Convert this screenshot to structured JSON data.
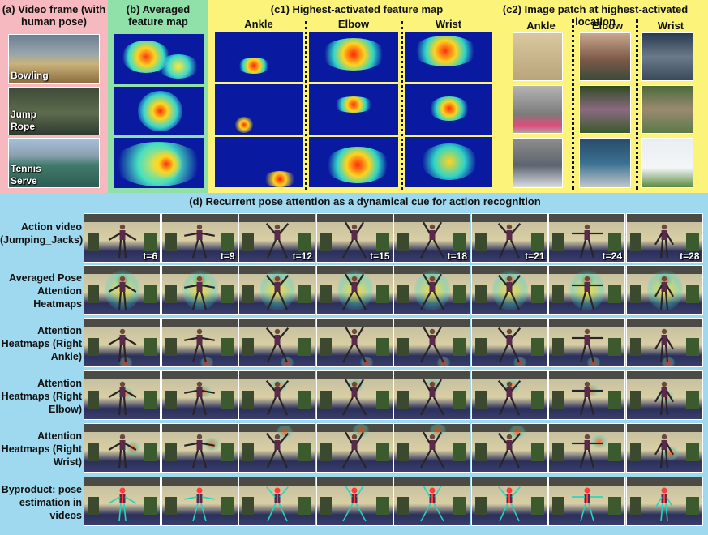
{
  "panel_a": {
    "title": "(a)  Video frame (with human pose)",
    "frames": [
      {
        "label": "Bowling"
      },
      {
        "label": "Jump Rope"
      },
      {
        "label": "Tennis Serve"
      }
    ]
  },
  "panel_b": {
    "title": "(b) Averaged feature map"
  },
  "panel_c1": {
    "title": "(c1)  Highest-activated feature map",
    "columns": [
      "Ankle",
      "Elbow",
      "Wrist"
    ]
  },
  "panel_c2": {
    "title": "(c2)  Image patch at highest-activated location",
    "columns": [
      "Ankle",
      "Elbow",
      "Wrist"
    ]
  },
  "panel_d": {
    "title": "(d) Recurrent pose attention as a dynamical cue for action recognition",
    "rows": [
      {
        "label": "Action video (Jumping_Jacks)"
      },
      {
        "label": "Averaged Pose Attention Heatmaps"
      },
      {
        "label": "Attention Heatmaps (Right Ankle)"
      },
      {
        "label": "Attention Heatmaps (Right  Elbow)"
      },
      {
        "label": "Attention Heatmaps (Right  Wrist)"
      },
      {
        "label": "Byproduct: pose estimation in videos"
      }
    ],
    "time_labels": [
      "t=6",
      "t=9",
      "t=12",
      "t=15",
      "t=18",
      "t=21",
      "t=24",
      "t=28"
    ]
  },
  "colors": {
    "panel_a_bg": "#f6b9bf",
    "panel_b_bg": "#8fe0a9",
    "panel_c_bg": "#fbf37a",
    "panel_d_bg": "#9fd9ef",
    "heatmap_base": "#0a1aa0"
  }
}
